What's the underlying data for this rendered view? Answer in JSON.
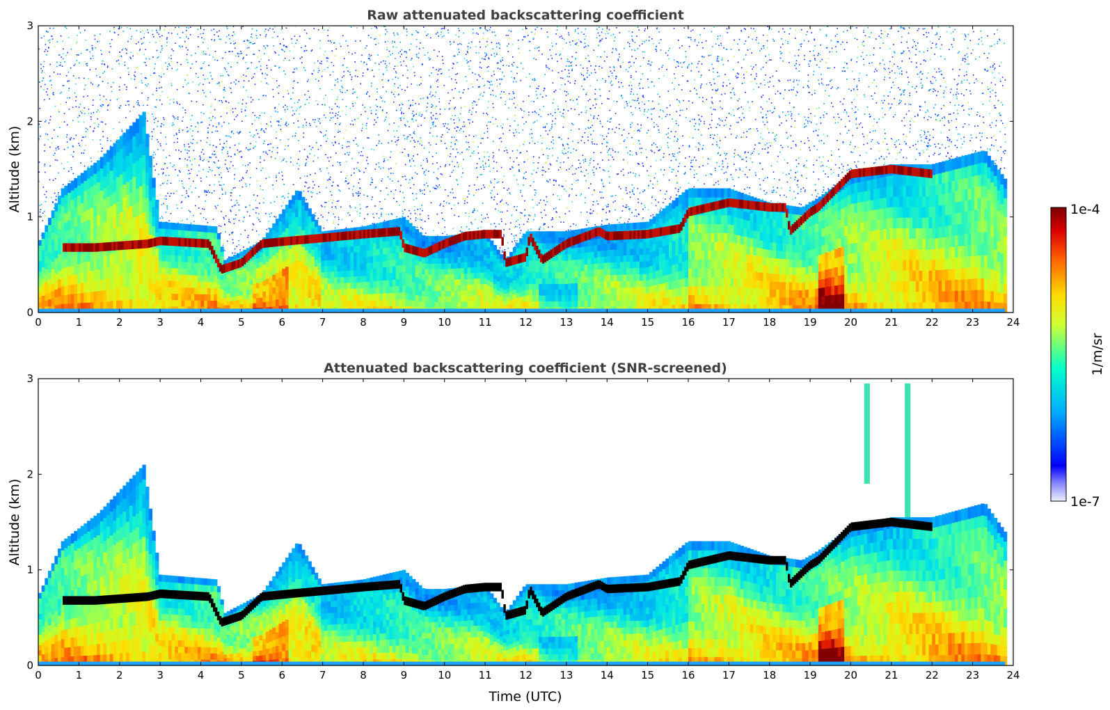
{
  "chart_data": [
    {
      "type": "heatmap",
      "title": "Raw attenuated backscattering coefficient",
      "xlabel": "",
      "ylabel": "Altitude (km)",
      "xlim": [
        0,
        24
      ],
      "ylim": [
        0,
        3
      ],
      "xticks": [
        "0",
        "1",
        "2",
        "3",
        "4",
        "5",
        "6",
        "7",
        "8",
        "9",
        "10",
        "11",
        "12",
        "13",
        "14",
        "15",
        "16",
        "17",
        "18",
        "19",
        "20",
        "21",
        "22",
        "23",
        "24"
      ],
      "yticks": [
        "0",
        "1",
        "2",
        "3"
      ],
      "data_end_hour": 23.8,
      "noise_above_layer": true,
      "layer_top_km": [
        [
          0,
          0.72
        ],
        [
          0.6,
          1.3
        ],
        [
          1.5,
          1.6
        ],
        [
          2.6,
          2.1
        ],
        [
          3,
          0.95
        ],
        [
          4.4,
          0.9
        ],
        [
          4.6,
          0.55
        ],
        [
          5.5,
          0.75
        ],
        [
          6.4,
          1.3
        ],
        [
          7,
          0.85
        ],
        [
          8,
          0.9
        ],
        [
          9,
          1.0
        ],
        [
          9.5,
          0.8
        ],
        [
          10,
          0.8
        ],
        [
          11,
          0.85
        ],
        [
          11.5,
          0.55
        ],
        [
          12,
          0.85
        ],
        [
          13,
          0.85
        ],
        [
          14,
          0.92
        ],
        [
          15,
          0.95
        ],
        [
          16,
          1.3
        ],
        [
          17,
          1.3
        ],
        [
          18,
          1.15
        ],
        [
          18.8,
          1.1
        ],
        [
          19.2,
          1.2
        ],
        [
          20,
          1.45
        ],
        [
          21,
          1.55
        ],
        [
          22,
          1.55
        ],
        [
          23.3,
          1.7
        ],
        [
          23.8,
          1.4
        ]
      ],
      "cloud_layer_km": [
        [
          0.6,
          0.68
        ],
        [
          1,
          0.68
        ],
        [
          1.4,
          0.68
        ],
        [
          2.7,
          0.72
        ],
        [
          3,
          0.75
        ],
        [
          4.2,
          0.72
        ],
        [
          4.5,
          0.45
        ],
        [
          5,
          0.52
        ],
        [
          5.5,
          0.72
        ],
        [
          6.2,
          0.75
        ],
        [
          7,
          0.78
        ],
        [
          8,
          0.82
        ],
        [
          8.9,
          0.85
        ],
        [
          9,
          0.68
        ],
        [
          9.5,
          0.62
        ],
        [
          10,
          0.72
        ],
        [
          10.5,
          0.8
        ],
        [
          11,
          0.82
        ],
        [
          11.4,
          0.82
        ],
        [
          11.5,
          0.52
        ],
        [
          12,
          0.58
        ],
        [
          12.1,
          0.8
        ],
        [
          12.4,
          0.55
        ],
        [
          13,
          0.72
        ],
        [
          13.8,
          0.85
        ],
        [
          14,
          0.8
        ],
        [
          15,
          0.82
        ],
        [
          15.8,
          0.88
        ],
        [
          16,
          1.05
        ],
        [
          17,
          1.15
        ],
        [
          18,
          1.1
        ],
        [
          18.4,
          1.1
        ],
        [
          18.5,
          0.85
        ],
        [
          19,
          1.05
        ],
        [
          19.2,
          1.1
        ],
        [
          20,
          1.45
        ],
        [
          21,
          1.5
        ],
        [
          22,
          1.45
        ]
      ],
      "colorbar": {
        "label": "1/m/sr",
        "max_label": "1e-4",
        "min_label": "1e-7",
        "colormap": "jet"
      }
    },
    {
      "type": "heatmap",
      "title": "Attenuated backscattering coefficient (SNR-screened)",
      "xlabel": "Time (UTC)",
      "ylabel": "Altitude (km)",
      "xlim": [
        0,
        24
      ],
      "ylim": [
        0,
        3
      ],
      "xticks": [
        "0",
        "1",
        "2",
        "3",
        "4",
        "5",
        "6",
        "7",
        "8",
        "9",
        "10",
        "11",
        "12",
        "13",
        "14",
        "15",
        "16",
        "17",
        "18",
        "19",
        "20",
        "21",
        "22",
        "23",
        "24"
      ],
      "yticks": [
        "0",
        "1",
        "2",
        "3"
      ],
      "data_end_hour": 23.8,
      "noise_above_layer": false,
      "cloud_color": "#000000",
      "extra_plumes": [
        [
          20.4,
          1.9,
          2.95
        ],
        [
          21.4,
          1.55,
          2.95
        ]
      ]
    }
  ]
}
